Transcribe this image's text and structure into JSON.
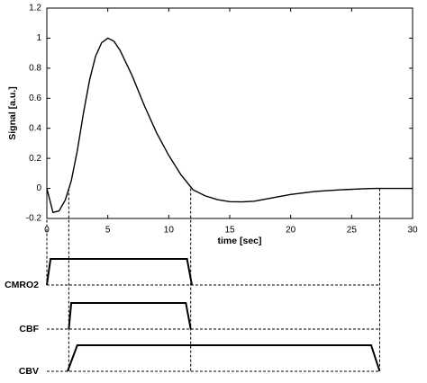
{
  "chart_data": {
    "type": "line",
    "xlabel": "time [sec]",
    "ylabel": "Signal [a.u.]",
    "x": [
      0,
      0.5,
      1,
      1.5,
      2,
      2.5,
      3,
      3.5,
      4,
      4.5,
      5,
      5.5,
      6,
      7,
      8,
      9,
      10,
      11,
      12,
      13,
      14,
      15,
      16,
      17,
      18,
      19,
      20,
      22,
      24,
      26,
      27,
      28,
      30
    ],
    "y": [
      0,
      -0.16,
      -0.15,
      -0.08,
      0.05,
      0.25,
      0.5,
      0.72,
      0.88,
      0.97,
      1.0,
      0.98,
      0.92,
      0.75,
      0.55,
      0.37,
      0.22,
      0.09,
      -0.01,
      -0.05,
      -0.075,
      -0.088,
      -0.09,
      -0.085,
      -0.07,
      -0.055,
      -0.04,
      -0.02,
      -0.01,
      -0.002,
      0,
      0,
      0
    ],
    "color": "#000000",
    "xlim": [
      0,
      30
    ],
    "xticks": [
      0,
      5,
      10,
      15,
      20,
      25,
      30
    ],
    "ylim": [
      -0.2,
      1.2
    ],
    "yticks": [
      -0.2,
      0,
      0.2,
      0.4,
      0.6,
      0.8,
      1,
      1.2
    ],
    "markers": [
      0,
      1.8,
      11.8,
      27.3
    ],
    "timing": [
      {
        "name": "CMRO2",
        "times": [
          0,
          0.3,
          11.5,
          11.9
        ]
      },
      {
        "name": "CBF",
        "times": [
          1.8,
          2.0,
          11.4,
          11.8
        ]
      },
      {
        "name": "CBV",
        "times": [
          1.7,
          2.5,
          26.6,
          27.3
        ]
      }
    ]
  }
}
